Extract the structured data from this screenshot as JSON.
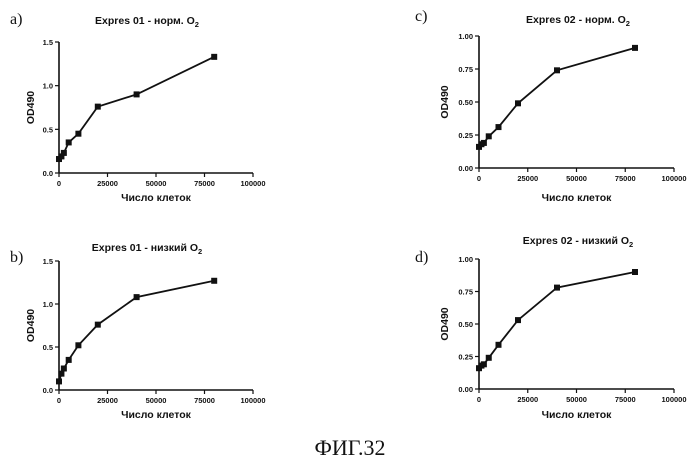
{
  "caption": "ФИГ.32",
  "chart_data": [
    {
      "panel": "a)",
      "type": "line",
      "title": "Expres 01 - норм. O",
      "title_sub": "2",
      "xlabel": "Число клеток",
      "ylabel": "OD490",
      "xlim": [
        0,
        100000
      ],
      "ylim": [
        0,
        1.5
      ],
      "x_ticks": [
        0,
        25000,
        50000,
        75000,
        100000
      ],
      "y_ticks": [
        0.0,
        0.5,
        1.0,
        1.5
      ],
      "y_tick_labels": [
        "0.0",
        "0.5",
        "1.0",
        "1.5"
      ],
      "x": [
        0,
        1250,
        2500,
        5000,
        10000,
        20000,
        40000,
        80000
      ],
      "y": [
        0.16,
        0.19,
        0.23,
        0.35,
        0.45,
        0.76,
        0.9,
        1.33
      ]
    },
    {
      "panel": "b)",
      "type": "line",
      "title": "Expres 01 - низкий O",
      "title_sub": "2",
      "xlabel": "Число клеток",
      "ylabel": "OD490",
      "xlim": [
        0,
        100000
      ],
      "ylim": [
        0,
        1.5
      ],
      "x_ticks": [
        0,
        25000,
        50000,
        75000,
        100000
      ],
      "y_ticks": [
        0.0,
        0.5,
        1.0,
        1.5
      ],
      "y_tick_labels": [
        "0.0",
        "0.5",
        "1.0",
        "1.5"
      ],
      "x": [
        0,
        1250,
        2500,
        5000,
        10000,
        20000,
        40000,
        80000
      ],
      "y": [
        0.1,
        0.19,
        0.25,
        0.35,
        0.52,
        0.76,
        1.08,
        1.27
      ]
    },
    {
      "panel": "c)",
      "type": "line",
      "title": "Expres 02 - норм. O",
      "title_sub": "2",
      "xlabel": "Число клеток",
      "ylabel": "OD490",
      "xlim": [
        0,
        100000
      ],
      "ylim": [
        0,
        1.0
      ],
      "x_ticks": [
        0,
        25000,
        50000,
        75000,
        100000
      ],
      "y_ticks": [
        0.0,
        0.25,
        0.5,
        0.75,
        1.0
      ],
      "y_tick_labels": [
        "0.00",
        "0.25",
        "0.50",
        "0.75",
        "1.00"
      ],
      "x": [
        0,
        1250,
        2500,
        5000,
        10000,
        20000,
        40000,
        80000
      ],
      "y": [
        0.16,
        0.18,
        0.19,
        0.24,
        0.31,
        0.49,
        0.74,
        0.91
      ]
    },
    {
      "panel": "d)",
      "type": "line",
      "title": "Expres 02 - низкий O",
      "title_sub": "2",
      "xlabel": "Число клеток",
      "ylabel": "OD490",
      "xlim": [
        0,
        100000
      ],
      "ylim": [
        0,
        1.0
      ],
      "x_ticks": [
        0,
        25000,
        50000,
        75000,
        100000
      ],
      "y_ticks": [
        0.0,
        0.25,
        0.5,
        0.75,
        1.0
      ],
      "y_tick_labels": [
        "0.00",
        "0.25",
        "0.50",
        "0.75",
        "1.00"
      ],
      "x": [
        0,
        1250,
        2500,
        5000,
        10000,
        20000,
        40000,
        80000
      ],
      "y": [
        0.16,
        0.18,
        0.19,
        0.24,
        0.34,
        0.53,
        0.78,
        0.9
      ]
    }
  ]
}
